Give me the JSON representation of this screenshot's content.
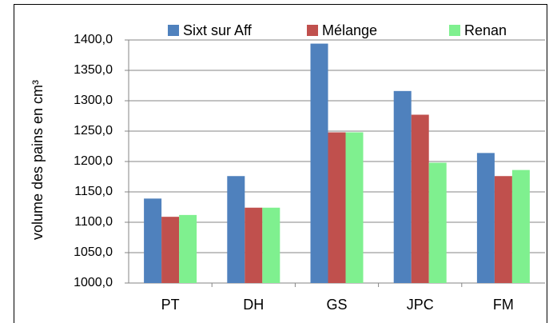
{
  "chart_data": {
    "type": "bar",
    "y_label": "volume des pains en cm³",
    "categories": [
      "PT",
      "DH",
      "GS",
      "JPC",
      "FM"
    ],
    "series": [
      {
        "name": "Sixt sur Aff",
        "color": "#4f81bd",
        "values": [
          1139,
          1176,
          1394,
          1316,
          1214
        ]
      },
      {
        "name": "Mélange",
        "color": "#c0504d",
        "values": [
          1109,
          1124,
          1248,
          1277,
          1176
        ]
      },
      {
        "name": "Renan",
        "color": "#7ff08f",
        "values": [
          1112,
          1124,
          1248,
          1198,
          1186
        ]
      }
    ],
    "ylim": [
      1000,
      1400
    ],
    "yticks": [
      {
        "value": 1000,
        "label": "1000,0"
      },
      {
        "value": 1050,
        "label": "1050,0"
      },
      {
        "value": 1100,
        "label": "1100,0"
      },
      {
        "value": 1150,
        "label": "1150,0"
      },
      {
        "value": 1200,
        "label": "1200,0"
      },
      {
        "value": 1250,
        "label": "1250,0"
      },
      {
        "value": 1300,
        "label": "1300,0"
      },
      {
        "value": 1350,
        "label": "1350,0"
      },
      {
        "value": 1400,
        "label": "1400,0"
      }
    ],
    "grid": true,
    "legend": "top"
  }
}
